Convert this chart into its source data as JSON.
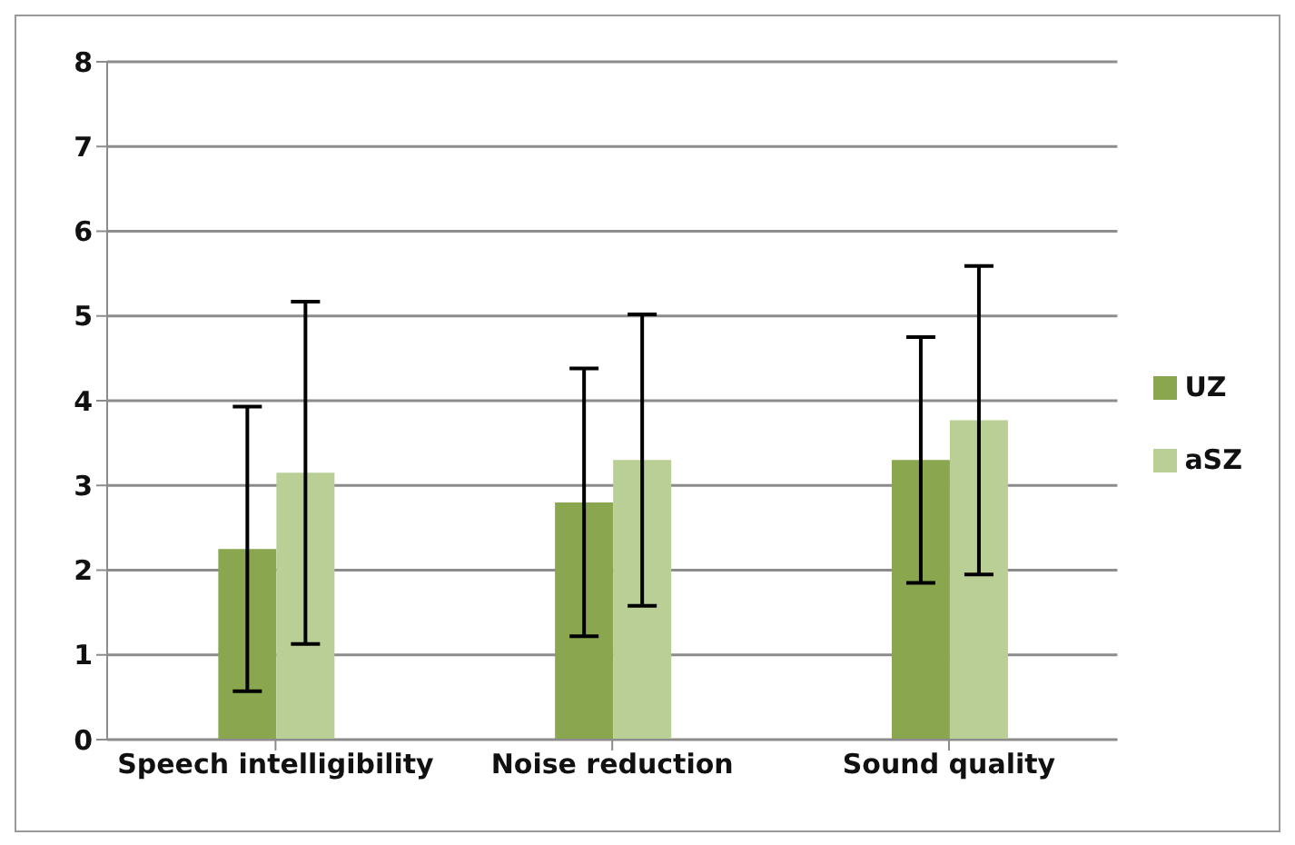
{
  "chart_data": {
    "type": "bar",
    "categories": [
      "Speech intelligibility",
      "Noise reduction",
      "Sound quality"
    ],
    "series": [
      {
        "name": "UZ",
        "color": "#8aa64f",
        "values": [
          2.25,
          2.8,
          3.3
        ],
        "errors": [
          1.68,
          1.58,
          1.45
        ]
      },
      {
        "name": "aSZ",
        "color": "#bacf96",
        "values": [
          3.15,
          3.3,
          3.77
        ],
        "errors": [
          2.02,
          1.72,
          1.82
        ]
      }
    ],
    "ylim": [
      0,
      8
    ],
    "yticks": [
      0,
      1,
      2,
      3,
      4,
      5,
      6,
      7,
      8
    ],
    "grid": "y",
    "legend": "right"
  }
}
